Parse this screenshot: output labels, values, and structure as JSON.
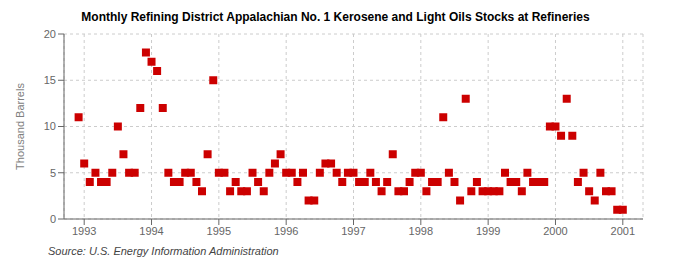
{
  "chart_data": {
    "type": "scatter",
    "title": "Monthly Refining District Appalachian No. 1 Kerosene and Light Oils Stocks at Refineries",
    "ylabel": "Thousand Barrels",
    "annotations": [
      "Source: U.S. Energy Information Administration"
    ],
    "x": [
      1992.917,
      1993.0,
      1993.083,
      1993.167,
      1993.25,
      1993.333,
      1993.417,
      1993.5,
      1993.583,
      1993.667,
      1993.75,
      1993.833,
      1993.917,
      1994.0,
      1994.083,
      1994.167,
      1994.25,
      1994.333,
      1994.417,
      1994.5,
      1994.583,
      1994.667,
      1994.75,
      1994.833,
      1994.917,
      1995.0,
      1995.083,
      1995.167,
      1995.25,
      1995.333,
      1995.417,
      1995.5,
      1995.583,
      1995.667,
      1995.75,
      1995.833,
      1995.917,
      1996.0,
      1996.083,
      1996.167,
      1996.25,
      1996.333,
      1996.417,
      1996.5,
      1996.583,
      1996.667,
      1996.75,
      1996.833,
      1996.917,
      1997.0,
      1997.083,
      1997.167,
      1997.25,
      1997.333,
      1997.417,
      1997.5,
      1997.583,
      1997.667,
      1997.75,
      1997.833,
      1997.917,
      1998.0,
      1998.083,
      1998.167,
      1998.25,
      1998.333,
      1998.417,
      1998.5,
      1998.583,
      1998.667,
      1998.75,
      1998.833,
      1998.917,
      1999.0,
      1999.083,
      1999.167,
      1999.25,
      1999.333,
      1999.417,
      1999.5,
      1999.583,
      1999.667,
      1999.75,
      1999.833,
      1999.917,
      2000.0,
      2000.083,
      2000.167,
      2000.25,
      2000.333,
      2000.417,
      2000.5,
      2000.583,
      2000.667,
      2000.75,
      2000.833,
      2000.917,
      2001.0
    ],
    "values": [
      11,
      6,
      4,
      5,
      4,
      4,
      5,
      10,
      7,
      5,
      5,
      12,
      18,
      17,
      16,
      12,
      5,
      4,
      4,
      5,
      5,
      4,
      3,
      7,
      15,
      5,
      5,
      3,
      4,
      3,
      3,
      5,
      4,
      3,
      5,
      6,
      7,
      5,
      5,
      4,
      5,
      2,
      2,
      5,
      6,
      6,
      5,
      4,
      5,
      5,
      4,
      4,
      5,
      4,
      3,
      4,
      7,
      3,
      3,
      4,
      5,
      5,
      3,
      4,
      4,
      11,
      5,
      4,
      2,
      13,
      3,
      4,
      3,
      3,
      3,
      3,
      5,
      4,
      4,
      3,
      5,
      4,
      4,
      4,
      10,
      10,
      9,
      13,
      9,
      4,
      5,
      3,
      2,
      5,
      3,
      3,
      1,
      1
    ],
    "color": "#cc0000",
    "marker": "square",
    "xlim": [
      1992.7,
      2001.3
    ],
    "xticks": [
      1993,
      1994,
      1995,
      1996,
      1997,
      1998,
      1999,
      2000,
      2001
    ],
    "ylim": [
      0,
      20
    ],
    "yticks": [
      0,
      5,
      10,
      15,
      20
    ],
    "grid": true
  }
}
